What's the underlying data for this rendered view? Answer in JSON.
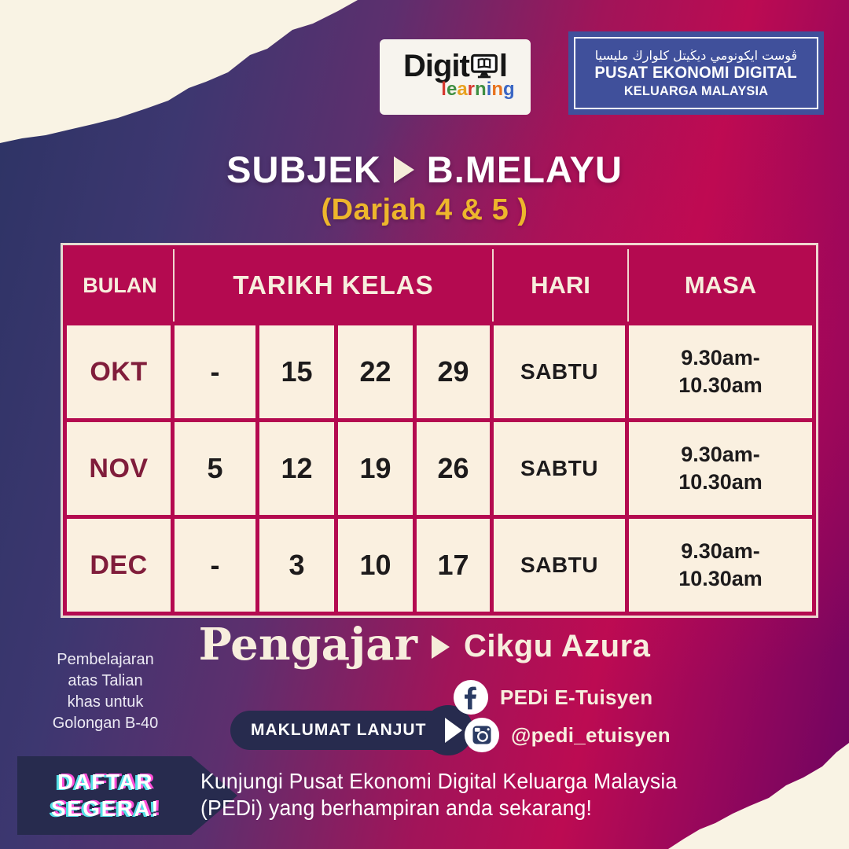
{
  "logos": {
    "digital": {
      "word_start": "Digit",
      "word_end": "l",
      "sub_letters": [
        {
          "ch": "l",
          "color": "#d6392f"
        },
        {
          "ch": "e",
          "color": "#3e8e41"
        },
        {
          "ch": "a",
          "color": "#e8a11f"
        },
        {
          "ch": "r",
          "color": "#d6392f"
        },
        {
          "ch": "n",
          "color": "#3e8e41"
        },
        {
          "ch": "i",
          "color": "#3a66c4"
        },
        {
          "ch": "n",
          "color": "#e8731f"
        },
        {
          "ch": "g",
          "color": "#3a66c4"
        }
      ]
    },
    "pedi": {
      "jawi": "ڤوست ايكونومي ديڬيتل كلوارڬ مليسيا",
      "line1": "PUSAT EKONOMI DIGITAL",
      "line2": "KELUARGA MALAYSIA"
    }
  },
  "title": {
    "label": "SUBJEK",
    "subject": "B.MELAYU",
    "grade": "(Darjah 4 & 5 )"
  },
  "schedule": {
    "headers": {
      "bulan": "BULAN",
      "tarikh": "TARIKH KELAS",
      "hari": "HARI",
      "masa": "MASA"
    },
    "rows": [
      {
        "month": "OKT",
        "d1": "-",
        "d2": "15",
        "d3": "22",
        "d4": "29",
        "day": "SABTU",
        "masa1": "9.30am-",
        "masa2": "10.30am"
      },
      {
        "month": "NOV",
        "d1": "5",
        "d2": "12",
        "d3": "19",
        "d4": "26",
        "day": "SABTU",
        "masa1": "9.30am-",
        "masa2": "10.30am"
      },
      {
        "month": "DEC",
        "d1": "-",
        "d2": "3",
        "d3": "10",
        "d4": "17",
        "day": "SABTU",
        "masa1": "9.30am-",
        "masa2": "10.30am"
      }
    ]
  },
  "teacher": {
    "label": "Pengajar",
    "name": "Cikgu Azura"
  },
  "note": {
    "line1": "Pembelajaran",
    "line2": "atas Talian",
    "line3": "khas untuk",
    "line4": "Golongan B-40"
  },
  "cta": {
    "more_info": "MAKLUMAT LANJUT",
    "register_line1": "DAFTAR",
    "register_line2": "SEGERA!"
  },
  "social": {
    "facebook_label": "PEDi E-Tuisyen",
    "instagram_label": "@pedi_etuisyen"
  },
  "footer": {
    "line1": "Kunjungi Pusat Ekonomi Digital Keluarga Malaysia",
    "line2": "(PEDi) yang berhampiran anda sekarang!"
  },
  "icons": {
    "play": "triangle-right",
    "facebook": "circle-f",
    "instagram": "camera-square",
    "monitor": "computer-monitor-book"
  },
  "colors": {
    "crimson": "#b40a50",
    "cream_cell": "#faf0e0",
    "cream_text": "#f7eedd",
    "navy": "#272b4e",
    "yellow": "#edb62c",
    "maroon": "#801d3b",
    "logo_blue": "#40509b",
    "glitch_cyan": "#54e0e6",
    "glitch_pink": "#ff4fd8"
  }
}
